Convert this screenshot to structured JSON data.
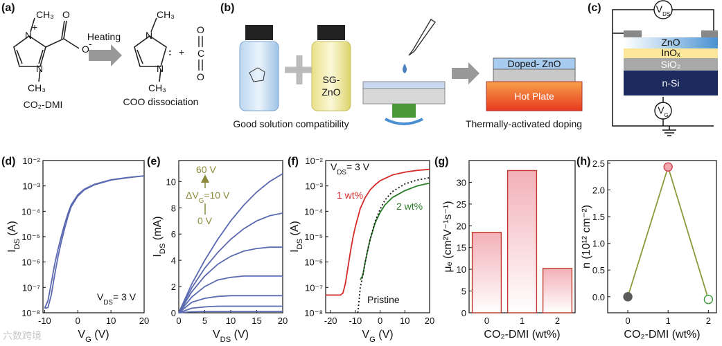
{
  "panels": {
    "a": {
      "label": "(a)",
      "left": [
        "N",
        "+",
        "CH₃",
        "N",
        "CH₃",
        "O",
        "-"
      ],
      "right": [
        "N",
        "CH₃",
        "N",
        "CH₃",
        ":",
        "O",
        "C",
        "O"
      ],
      "plus": "+",
      "arrow_label": "Heating",
      "captions": [
        "CO₂-DMI",
        "COO dissociation"
      ]
    },
    "b": {
      "label": "(b)",
      "vial_labels": [
        "SG-",
        "ZnO"
      ],
      "layer_labels": [
        "Doped- ZnO",
        "Hot Plate"
      ],
      "captions": [
        "Good solution compatibility",
        "Thermally-activated doping"
      ]
    },
    "c": {
      "label": "(c)",
      "layers": [
        "ZnO",
        "InOₓ",
        "SiO₂",
        "n-Si"
      ],
      "meters": [
        [
          "V",
          {
            "sub": "DS"
          }
        ],
        [
          "V",
          {
            "sub": "G"
          }
        ]
      ]
    }
  },
  "watermark": "六数跨境",
  "chart_data": [
    {
      "type": "line",
      "panel_label": "(d)",
      "ylog": true,
      "xlabel": [
        "V",
        {
          "sub": "G"
        },
        " (V)"
      ],
      "ylabel": [
        "I",
        {
          "sub": "DS"
        },
        " (A)"
      ],
      "xlim": [
        -10.5,
        20
      ],
      "xticks": [
        -10,
        0,
        10,
        20
      ],
      "ylim": [
        1e-08,
        0.01
      ],
      "yticks": [
        {
          "value": 1e-08,
          "label": "10⁻⁸"
        },
        {
          "value": 1e-07,
          "label": "10⁻⁷"
        },
        {
          "value": 1e-06,
          "label": "10⁻⁶"
        },
        {
          "value": 1e-05,
          "label": "10⁻⁵"
        },
        {
          "value": 0.0001,
          "label": "10⁻⁴"
        },
        {
          "value": 0.001,
          "label": "10⁻³"
        },
        {
          "value": 0.01,
          "label": "10⁻²"
        }
      ],
      "annotations": [
        [
          "V",
          {
            "sub": "DS"
          },
          "= 3 V"
        ]
      ],
      "x": [
        -10,
        -9,
        -8,
        -7,
        -6,
        -5,
        -4,
        -3,
        -2,
        0,
        2,
        5,
        10,
        15,
        20
      ],
      "series": [
        {
          "color": "#5a69b0",
          "values": [
            1.5e-08,
            1.6e-08,
            5e-08,
            3e-07,
            1.5e-06,
            6e-06,
            2e-05,
            6e-05,
            0.00015,
            0.0004,
            0.0007,
            0.0011,
            0.0017,
            0.0021,
            0.0025
          ]
        },
        {
          "color": "#5a69b0",
          "values": [
            1.5e-08,
            3e-08,
            1.5e-07,
            8e-07,
            3e-06,
            1e-05,
            3e-05,
            8e-05,
            0.00018,
            0.00045,
            0.00075,
            0.00115,
            0.00175,
            0.00215,
            0.0025
          ]
        }
      ]
    },
    {
      "type": "line",
      "panel_label": "(e)",
      "xlabel": [
        "V",
        {
          "sub": "DS"
        },
        " (V)"
      ],
      "ylabel": [
        "I",
        {
          "sub": "DS"
        },
        " (mA)"
      ],
      "xlim": [
        0,
        20
      ],
      "xticks": [
        0,
        5,
        10,
        15,
        20
      ],
      "ylim": [
        0,
        11.6
      ],
      "yticks": [
        0,
        2,
        4,
        6,
        8,
        10
      ],
      "annotations": [
        "60 V",
        [
          "ΔV",
          {
            "sub": "G"
          },
          "=10 V"
        ],
        "0 V"
      ],
      "annotation_color": "#8a8a3a",
      "x": [
        0,
        2.5,
        5,
        7.5,
        10,
        12.5,
        15,
        17.5,
        20
      ],
      "series": [
        {
          "color": "#5a69b0",
          "values": [
            0,
            2.2,
            4.0,
            5.6,
            7.0,
            8.2,
            9.2,
            10.0,
            10.6
          ]
        },
        {
          "color": "#5a69b0",
          "values": [
            0,
            1.9,
            3.4,
            4.6,
            5.6,
            6.4,
            7.0,
            7.4,
            7.6
          ]
        },
        {
          "color": "#5a69b0",
          "values": [
            0,
            1.6,
            2.8,
            3.7,
            4.3,
            4.7,
            4.9,
            5.0,
            5.0
          ]
        },
        {
          "color": "#5a69b0",
          "values": [
            0,
            1.2,
            2.0,
            2.5,
            2.7,
            2.8,
            2.8,
            2.8,
            2.8
          ]
        },
        {
          "color": "#5a69b0",
          "values": [
            0,
            0.8,
            1.1,
            1.25,
            1.3,
            1.3,
            1.3,
            1.3,
            1.3
          ]
        },
        {
          "color": "#5a69b0",
          "values": [
            0,
            0.35,
            0.45,
            0.5,
            0.5,
            0.5,
            0.5,
            0.5,
            0.5
          ]
        },
        {
          "color": "#5a69b0",
          "values": [
            0,
            0.08,
            0.1,
            0.1,
            0.1,
            0.1,
            0.1,
            0.1,
            0.1
          ]
        }
      ]
    },
    {
      "type": "line",
      "panel_label": "(f)",
      "ylog": true,
      "xlabel": [
        "V",
        {
          "sub": "G"
        },
        " (V)"
      ],
      "ylabel": [
        "I",
        {
          "sub": "DS"
        },
        " (A)"
      ],
      "xlim": [
        -22,
        20
      ],
      "xticks": [
        -20,
        -10,
        0,
        10,
        20
      ],
      "ylim": [
        1e-08,
        0.01
      ],
      "yticks": [
        {
          "value": 1e-08,
          "label": "10⁻⁸"
        },
        {
          "value": 1e-07,
          "label": "10⁻⁷"
        },
        {
          "value": 1e-06,
          "label": "10⁻⁶"
        },
        {
          "value": 1e-05,
          "label": "10⁻⁵"
        },
        {
          "value": 0.0001,
          "label": "10⁻⁴"
        },
        {
          "value": 0.001,
          "label": "10⁻³"
        },
        {
          "value": 0.01,
          "label": "10⁻²"
        }
      ],
      "annotations": [
        [
          "V",
          {
            "sub": "DS"
          },
          "= 3 V"
        ]
      ],
      "series": [
        {
          "name": "1 wt%",
          "color": "#d62a2a",
          "x": [
            -22,
            -16,
            -15,
            -14,
            -13,
            -12,
            -11,
            -10,
            -8,
            -6,
            -4,
            -2,
            0,
            5,
            10,
            15,
            20
          ],
          "values": [
            5e-08,
            5e-08,
            6e-08,
            1.5e-07,
            6e-07,
            2.5e-06,
            9e-06,
            2.5e-05,
            0.00013,
            0.00035,
            0.0007,
            0.0011,
            0.0016,
            0.0027,
            0.0035,
            0.0041,
            0.0045
          ]
        },
        {
          "name": "2 wt%",
          "color": "#2a7d2a",
          "x": [
            -8,
            -7,
            -6,
            -5,
            -4,
            -2,
            0,
            2,
            5,
            10,
            15,
            20
          ],
          "values": [
            2e-07,
            3e-07,
            1e-06,
            3e-06,
            8e-06,
            3.5e-05,
            9e-05,
            0.00018,
            0.00035,
            0.00065,
            0.001,
            0.0013
          ]
        },
        {
          "name": "Pristine",
          "color": "#111111",
          "dash": true,
          "x": [
            -9,
            -8.5,
            -8,
            -7,
            -6,
            -5,
            -4,
            -2,
            0,
            2,
            5,
            10,
            15,
            20
          ],
          "values": [
            1e-08,
            3e-08,
            1e-07,
            3e-07,
            1e-06,
            3e-06,
            8e-06,
            4e-05,
            0.00012,
            0.00028,
            0.0006,
            0.0012,
            0.0017,
            0.0021
          ]
        }
      ]
    },
    {
      "type": "bar",
      "panel_label": "(g)",
      "xlabel": "CO₂-DMI (wt%)",
      "ylabel": "μₑ (cm²V⁻¹s⁻¹)",
      "categories": [
        "0",
        "1",
        "2"
      ],
      "values": [
        18.5,
        32.7,
        10.2
      ],
      "color": "#c0392b",
      "fill": "#f3b0b8",
      "ylim": [
        0,
        35
      ],
      "yticks": [
        0,
        5,
        10,
        15,
        20,
        25,
        30
      ]
    },
    {
      "type": "line",
      "panel_label": "(h)",
      "xlabel": "CO₂-DMI (wt%)",
      "ylabel": "n (10¹² cm⁻²)",
      "xlim": [
        -0.5,
        2.2
      ],
      "xticks": [
        0,
        1,
        2
      ],
      "ylim": [
        -0.3,
        2.55
      ],
      "yticks": [
        {
          "value": 0,
          "label": "0.0"
        },
        0.5,
        {
          "value": 1,
          "label": "1.0"
        },
        1.5,
        {
          "value": 2,
          "label": "2.0"
        },
        2.5
      ],
      "x": [
        0,
        1,
        2
      ],
      "markers": true,
      "series": [
        {
          "color": "#8a9a3a",
          "values": [
            0,
            2.43,
            -0.05
          ],
          "marker_fill": [
            "#5a5a5a",
            "#f4a7b0",
            "#ffffff"
          ],
          "marker_stroke": [
            "#5a5a5a",
            "#d04050",
            "#3a9a3a"
          ]
        }
      ]
    }
  ]
}
